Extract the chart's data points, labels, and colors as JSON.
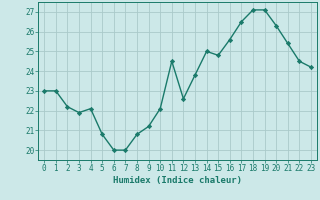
{
  "x": [
    0,
    1,
    2,
    3,
    4,
    5,
    6,
    7,
    8,
    9,
    10,
    11,
    12,
    13,
    14,
    15,
    16,
    17,
    18,
    19,
    20,
    21,
    22,
    23
  ],
  "y": [
    23.0,
    23.0,
    22.2,
    21.9,
    22.1,
    20.8,
    20.0,
    20.0,
    20.8,
    21.2,
    22.1,
    24.5,
    22.6,
    23.8,
    25.0,
    24.8,
    25.6,
    26.5,
    27.1,
    27.1,
    26.3,
    25.4,
    24.5,
    24.2
  ],
  "line_color": "#1a7a6a",
  "marker": "D",
  "marker_size": 2.2,
  "bg_color": "#cce8e8",
  "grid_color": "#aacaca",
  "xlabel": "Humidex (Indice chaleur)",
  "ylim": [
    19.5,
    27.5
  ],
  "xlim": [
    -0.5,
    23.5
  ],
  "yticks": [
    20,
    21,
    22,
    23,
    24,
    25,
    26,
    27
  ],
  "xticks": [
    0,
    1,
    2,
    3,
    4,
    5,
    6,
    7,
    8,
    9,
    10,
    11,
    12,
    13,
    14,
    15,
    16,
    17,
    18,
    19,
    20,
    21,
    22,
    23
  ],
  "axis_color": "#1a7a6a",
  "tick_color": "#1a7a6a",
  "label_color": "#1a7a6a",
  "font_family": "monospace",
  "tick_fontsize": 5.5,
  "xlabel_fontsize": 6.5
}
